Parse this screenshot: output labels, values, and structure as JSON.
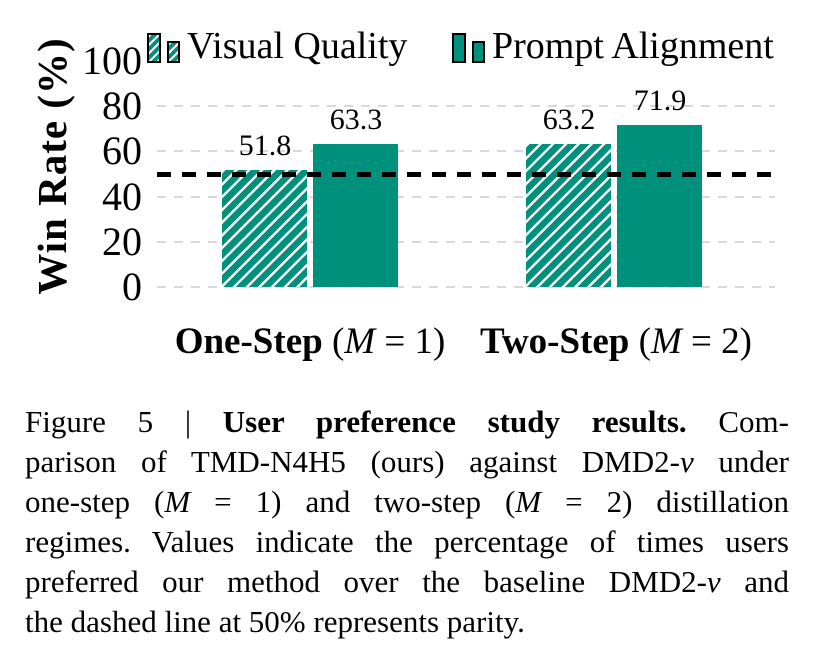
{
  "chart_data": {
    "type": "bar",
    "ylabel": "Win Rate (%)",
    "ylim": [
      0,
      100
    ],
    "yticks": [
      0,
      20,
      40,
      60,
      80,
      100
    ],
    "grid": "horizontal-dashed",
    "legend_position": "top",
    "categories": [
      "One-Step (M = 1)",
      "Two-Step (M = 2)"
    ],
    "category_label_segments": [
      [
        {
          "t": "One-Step ",
          "s": "b"
        },
        {
          "t": "(",
          "s": "n"
        },
        {
          "t": "M",
          "s": "i"
        },
        {
          "t": " = 1)",
          "s": "n"
        }
      ],
      [
        {
          "t": "Two-Step ",
          "s": "b"
        },
        {
          "t": "(",
          "s": "n"
        },
        {
          "t": "M",
          "s": "i"
        },
        {
          "t": " = 2)",
          "s": "n"
        }
      ]
    ],
    "series": [
      {
        "name": "Visual Quality",
        "style": "hatched",
        "values": [
          51.8,
          63.2
        ]
      },
      {
        "name": "Prompt Alignment",
        "style": "solid",
        "values": [
          63.3,
          71.9
        ]
      }
    ],
    "parity_line": 50,
    "colors": {
      "bar_fill": "#00917c",
      "gridline": "#d9d9d9",
      "parity_line": "#000000",
      "text": "#000000"
    }
  },
  "figure": {
    "caption_lines": [
      [
        {
          "t": "Figure 5 | ",
          "s": "n"
        },
        {
          "t": "User preference study results.",
          "s": "b"
        },
        {
          "t": " Com-",
          "s": "n"
        }
      ],
      [
        {
          "t": "parison of TMD-N4H5 (ours) against DMD2-",
          "s": "n"
        },
        {
          "t": "v",
          "s": "i"
        },
        {
          "t": " under",
          "s": "n"
        }
      ],
      [
        {
          "t": "one-step (",
          "s": "n"
        },
        {
          "t": "M",
          "s": "i"
        },
        {
          "t": " = 1) and two-step (",
          "s": "n"
        },
        {
          "t": "M",
          "s": "i"
        },
        {
          "t": " = 2) distillation",
          "s": "n"
        }
      ],
      [
        {
          "t": "regimes. Values indicate the percentage of times users",
          "s": "n"
        }
      ],
      [
        {
          "t": "preferred our method over the baseline DMD2-",
          "s": "n"
        },
        {
          "t": "v",
          "s": "i"
        },
        {
          "t": " and",
          "s": "n"
        }
      ],
      [
        {
          "t": "the dashed line at 50% represents parity.",
          "s": "n"
        }
      ]
    ]
  }
}
